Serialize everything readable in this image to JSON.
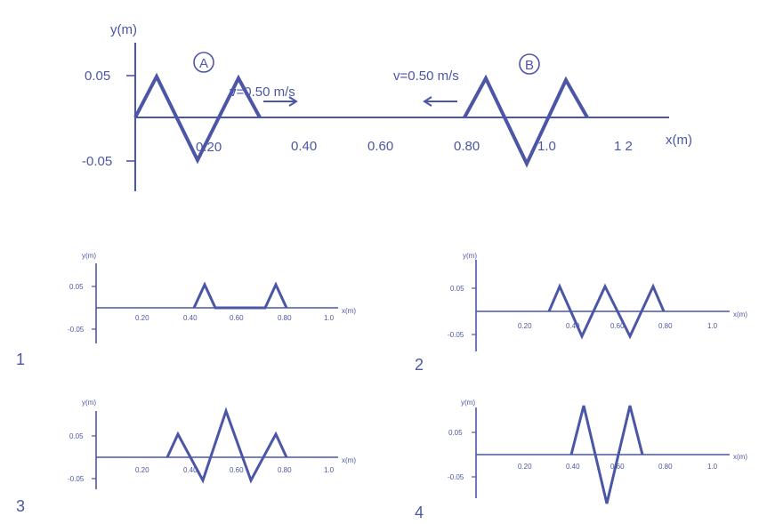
{
  "colors": {
    "ink": "#4c56a6",
    "background": "#ffffff"
  },
  "main": {
    "y_label": "y(m)",
    "x_label": "x(m)",
    "y_ticks": [
      "0.05",
      "-0.05"
    ],
    "x_ticks": [
      "0.20",
      "0.40",
      "0.60",
      "0.80",
      "1.0",
      "1 2"
    ],
    "pulse_a": {
      "label": "A",
      "velocity": "v=0.50 m/s"
    },
    "pulse_b": {
      "label": "B",
      "velocity": "v=0.50 m/s"
    }
  },
  "options": [
    {
      "number": "1"
    },
    {
      "number": "2"
    },
    {
      "number": "3"
    },
    {
      "number": "4"
    }
  ],
  "mini_axes": {
    "y_label": "y(m)",
    "x_label": "x(m)",
    "y_ticks": [
      "0.05",
      "-0.05"
    ],
    "x_ticks": [
      "0.20",
      "0.40",
      "0.60",
      "0.80",
      "1.0"
    ]
  }
}
